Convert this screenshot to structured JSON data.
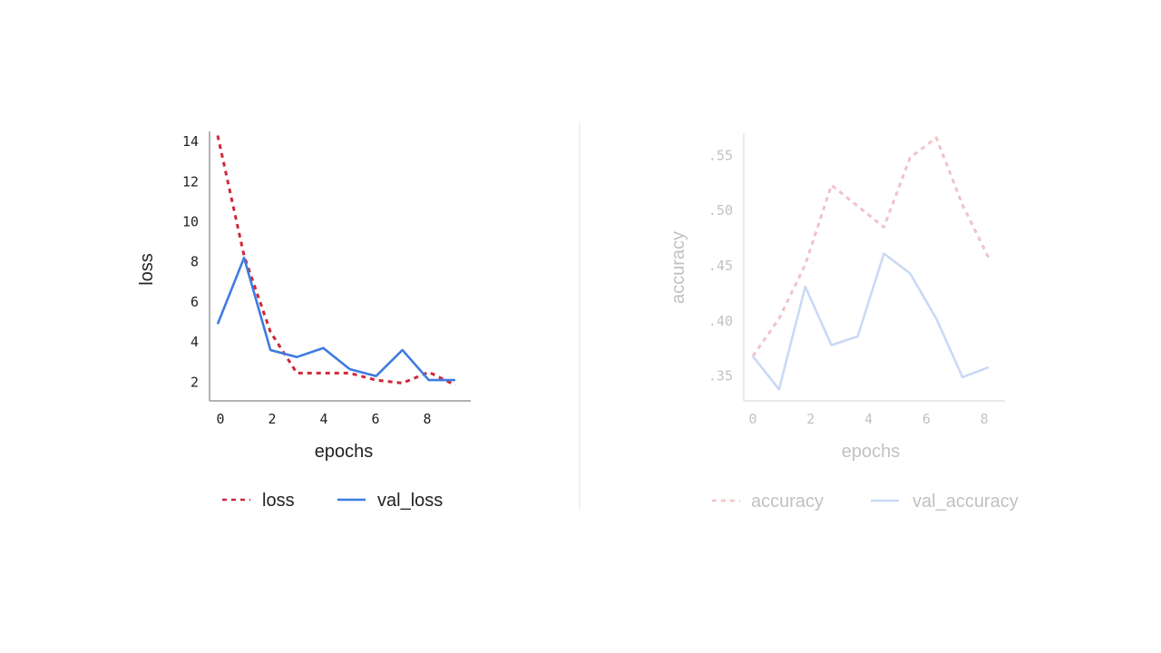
{
  "chart_data": [
    {
      "type": "line",
      "xlabel": "epochs",
      "ylabel": "loss",
      "x": [
        0,
        1,
        2,
        3,
        4,
        5,
        6,
        7,
        8,
        9
      ],
      "xticks": [
        "0",
        "2",
        "4",
        "6",
        "8"
      ],
      "yticks": [
        "2",
        "4",
        "6",
        "8",
        "10",
        "12",
        "14"
      ],
      "ylim": [
        1.2,
        14.5
      ],
      "grid": false,
      "legend": "bottom",
      "series": [
        {
          "name": "loss",
          "style": "dashed",
          "color": "#d0283a",
          "values": [
            14.3,
            8.3,
            4.5,
            2.45,
            2.45,
            2.45,
            2.1,
            1.95,
            2.5,
            1.85
          ]
        },
        {
          "name": "val_loss",
          "style": "solid",
          "color": "#3f7be0",
          "values": [
            4.9,
            8.2,
            3.6,
            3.25,
            3.7,
            2.65,
            2.3,
            3.6,
            2.1,
            2.1
          ]
        }
      ]
    },
    {
      "type": "line",
      "faded": true,
      "xlabel": "epochs",
      "ylabel": "accuracy",
      "x": [
        0,
        1,
        2,
        3,
        4,
        5,
        6,
        7,
        8,
        9
      ],
      "xticks": [
        "0",
        "2",
        "4",
        "6",
        "8"
      ],
      "yticks": [
        ".35",
        ".40",
        ".45",
        ".50",
        ".55"
      ],
      "ylim": [
        0.33,
        0.57
      ],
      "grid": false,
      "legend": "bottom",
      "series": [
        {
          "name": "accuracy",
          "style": "dashed",
          "color": "#d0283a",
          "values": [
            0.368,
            0.402,
            0.451,
            0.523,
            0.504,
            0.485,
            0.548,
            0.566,
            0.505,
            0.457
          ]
        },
        {
          "name": "val_accuracy",
          "style": "solid",
          "color": "#3f7be0",
          "values": [
            0.368,
            0.338,
            0.431,
            0.378,
            0.386,
            0.461,
            0.443,
            0.402,
            0.349,
            0.358
          ]
        }
      ]
    }
  ]
}
